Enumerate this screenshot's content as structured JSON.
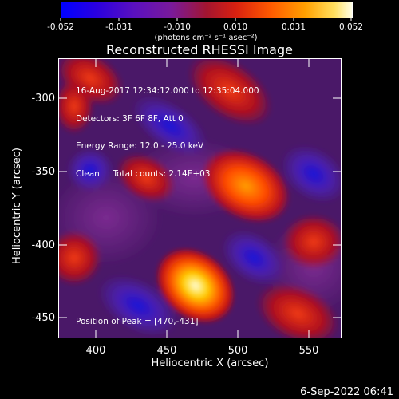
{
  "colorbar": {
    "tick_labels": [
      "-0.052",
      "-0.031",
      "-0.010",
      "0.010",
      "0.031",
      "0.052"
    ],
    "unit_label": "(photons cm⁻² s⁻¹ asec⁻²)"
  },
  "title": "Reconstructed RHESSI Image",
  "info": {
    "line1": "16-Aug-2017 12:34:12.000 to 12:35:04.000",
    "line2": "Detectors: 3F 6F 8F, Att 0",
    "line3": "Energy Range: 12.0 - 25.0 keV",
    "line4": "Clean     Total counts: 2.14E+03"
  },
  "peak_label": "Position of Peak = [470,-431]",
  "x_axis": {
    "label": "Heliocentric X (arcsec)",
    "ticks": [
      "400",
      "450",
      "500",
      "550"
    ]
  },
  "y_axis": {
    "label": "Heliocentric Y (arcsec)",
    "ticks": [
      "-300",
      "-350",
      "-400",
      "-450"
    ]
  },
  "footer_date": "6-Sep-2022 06:41",
  "colors": {
    "background": "#000000",
    "colormap": [
      "#0000ff",
      "#4a00d8",
      "#8a2aa8",
      "#c8102a",
      "#ff5000",
      "#ffb800",
      "#ffffe0"
    ]
  }
}
